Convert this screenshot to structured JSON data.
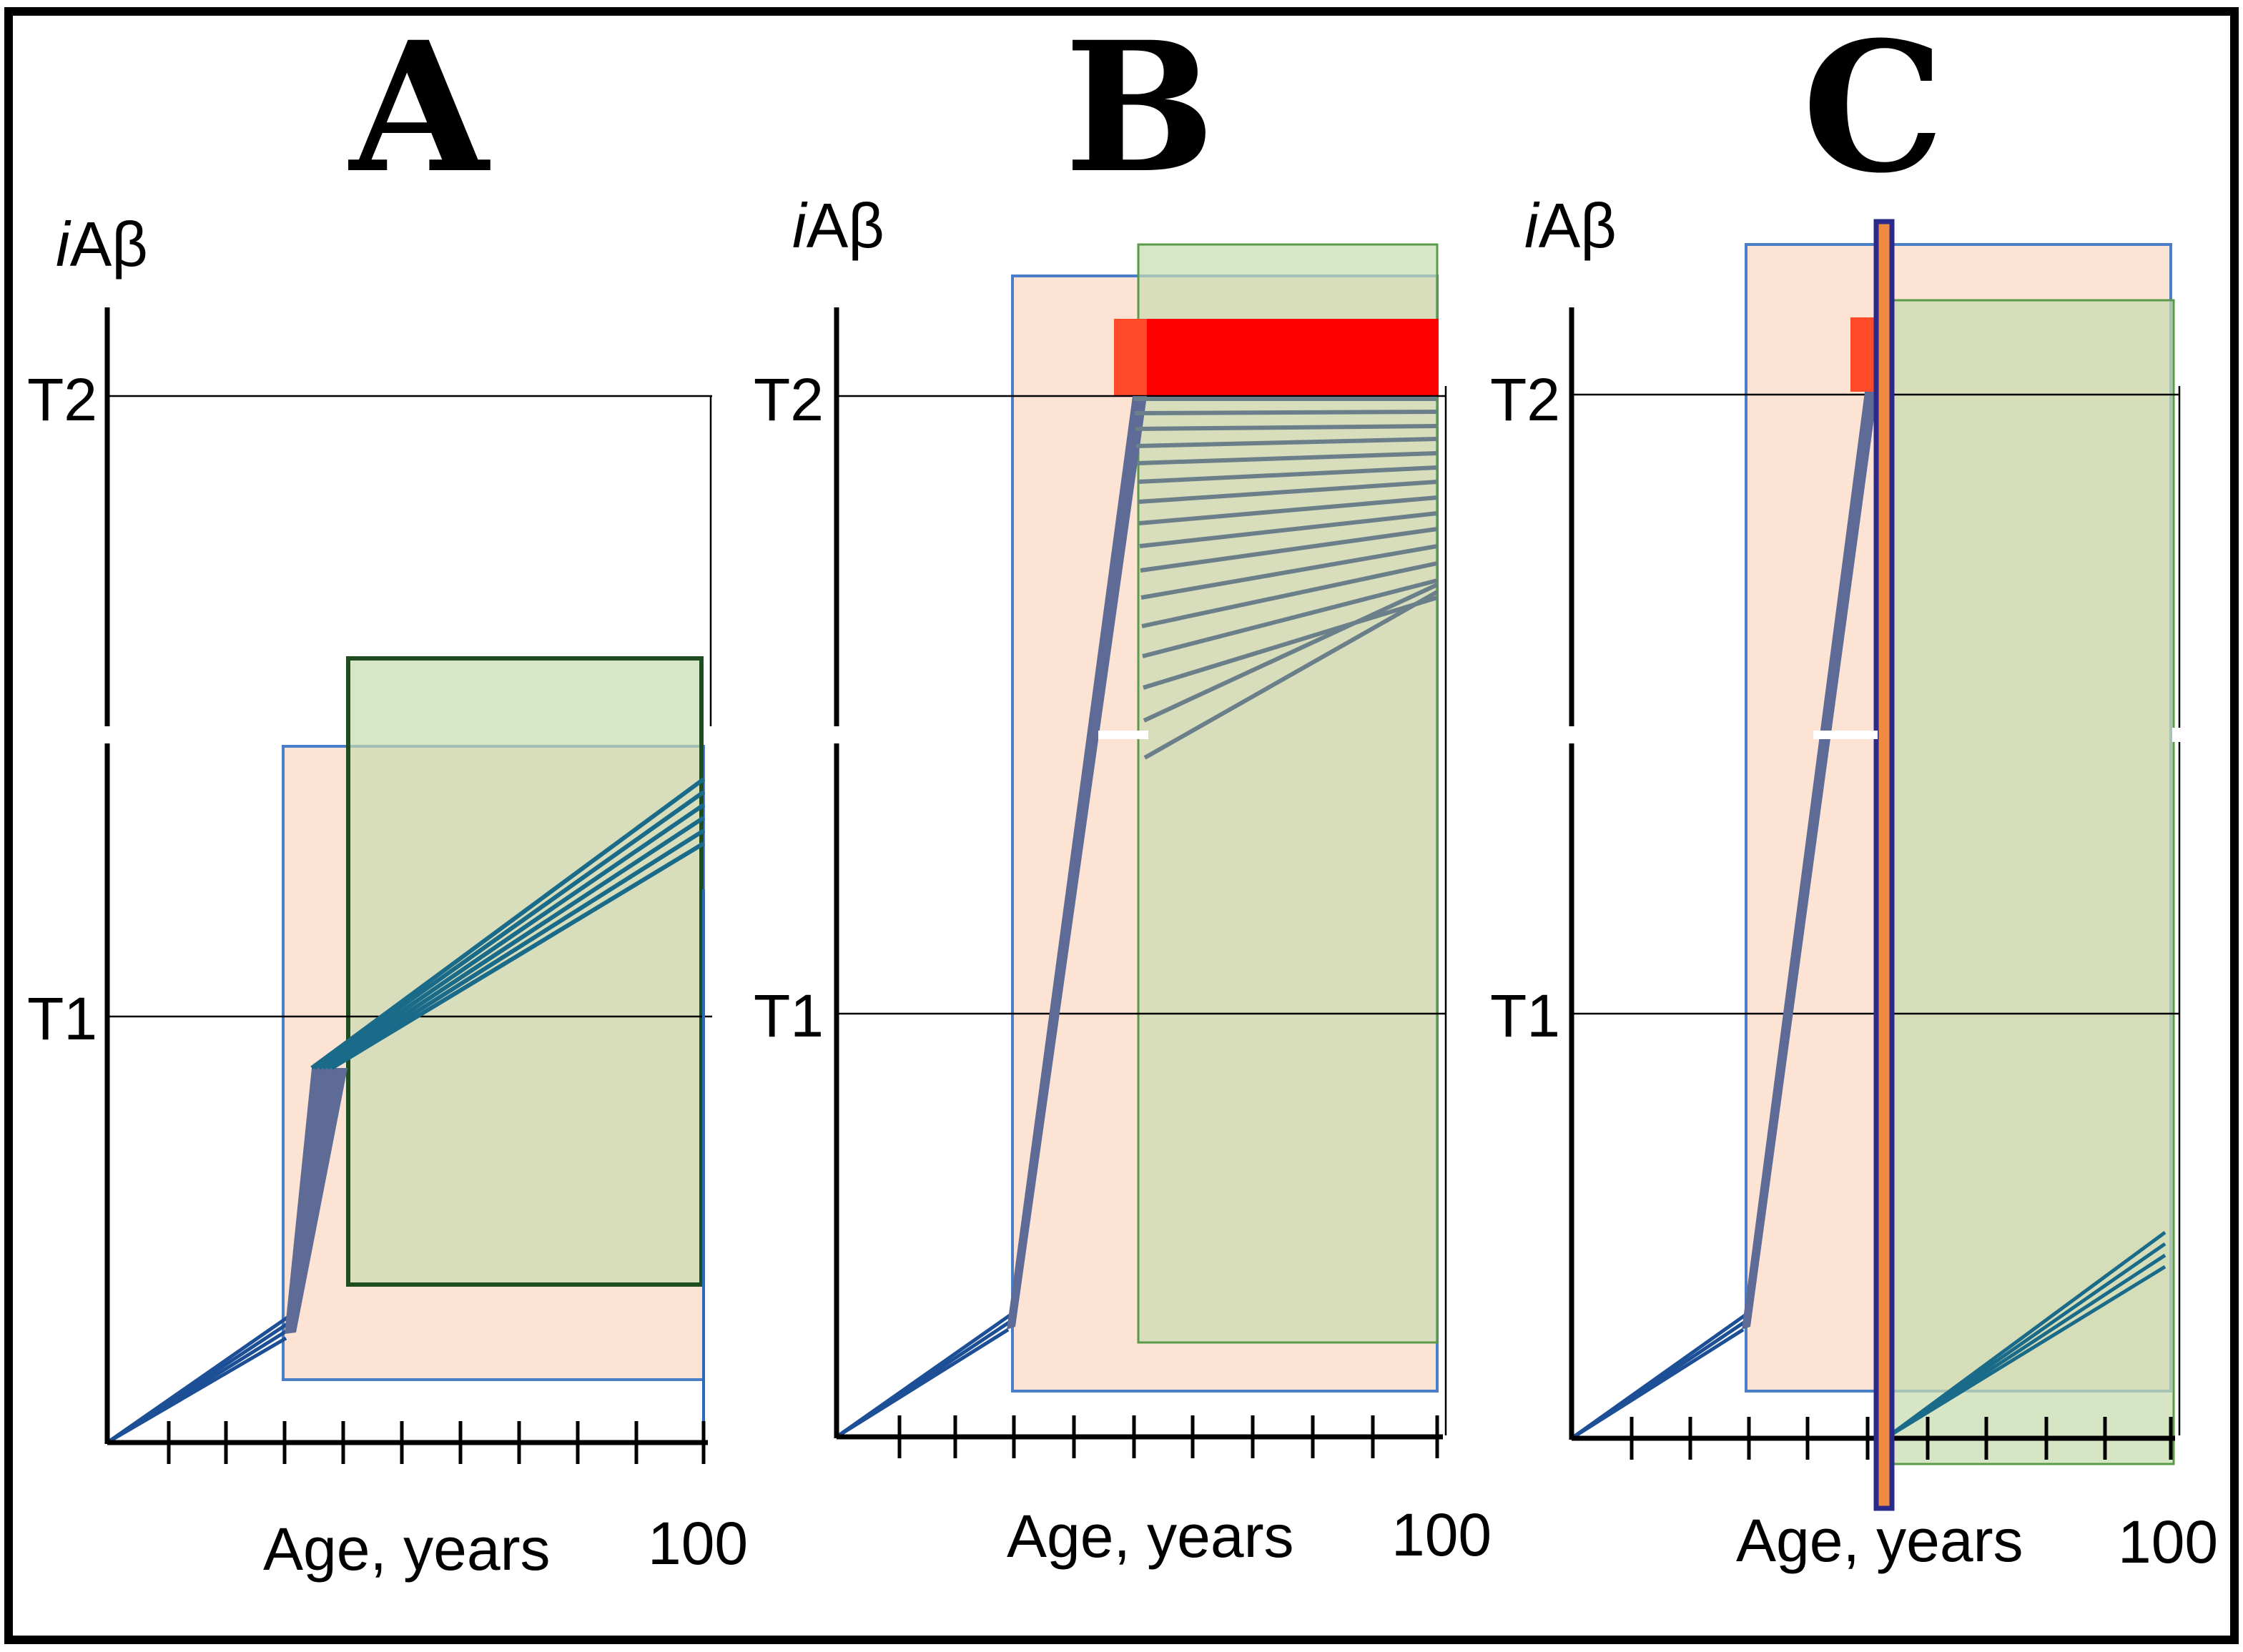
{
  "figure": {
    "panels": [
      {
        "id": "A",
        "letter": "A",
        "ylabel_prefix": "i",
        "ylabel_main": "Aβ",
        "threshold_high": "T2",
        "threshold_low": "T1",
        "xlabel": "Age, years",
        "xmax_label": "100"
      },
      {
        "id": "B",
        "letter": "B",
        "ylabel_prefix": "i",
        "ylabel_main": "Aβ",
        "threshold_high": "T2",
        "threshold_low": "T1",
        "xlabel": "Age, years",
        "xmax_label": "100"
      },
      {
        "id": "C",
        "letter": "C",
        "ylabel_prefix": "i",
        "ylabel_main": "Aβ",
        "threshold_high": "T2",
        "threshold_low": "T1",
        "xlabel": "Age, years",
        "xmax_label": "100"
      }
    ]
  },
  "colors": {
    "border": "#000000",
    "pink_region": "#fde3d3",
    "pink_outline": "#4a7ec9",
    "green_region": "#c8dcb0",
    "green_outline_a": "#1f4d1f",
    "green_outline_b": "#5a9a4a",
    "bundle_steep": "#5d6b96",
    "bundle_early": "#1d4f96",
    "bundle_slow": "#1a6a8a",
    "hatch": "#6b7f8a",
    "red_bar": "#ff0000",
    "red_bar_light": "#ff4a2a",
    "blue_bar": "#2a2a8a",
    "gray_line": "#000000"
  }
}
